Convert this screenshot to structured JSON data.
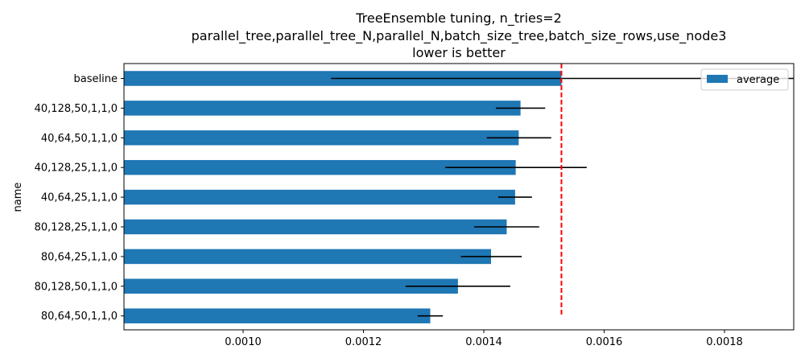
{
  "chart_data": {
    "type": "bar",
    "orientation": "horizontal",
    "title_lines": [
      "TreeEnsemble tuning, n_tries=2",
      "parallel_tree,parallel_tree_N,parallel_N,batch_size_tree,batch_size_rows,use_node3",
      "lower is better"
    ],
    "ylabel": "name",
    "xlabel": "",
    "xlim": [
      0.000802,
      0.001915
    ],
    "xticks": [
      0.001,
      0.0012,
      0.0014,
      0.0016,
      0.0018
    ],
    "xtick_labels": [
      "0.0010",
      "0.0012",
      "0.0014",
      "0.0016",
      "0.0018"
    ],
    "categories": [
      "baseline",
      "40,128,50,1,1,0",
      "40,64,50,1,1,0",
      "40,128,25,1,1,0",
      "40,64,25,1,1,0",
      "80,128,25,1,1,0",
      "80,64,25,1,1,0",
      "80,128,50,1,1,0",
      "80,64,50,1,1,0"
    ],
    "series": [
      {
        "name": "average",
        "color": "#1f77b4",
        "values": [
          0.001529,
          0.001461,
          0.001458,
          0.001453,
          0.001452,
          0.001438,
          0.001412,
          0.001357,
          0.001311
        ],
        "error_low": [
          0.001146,
          0.00142,
          0.001405,
          0.001336,
          0.001424,
          0.001384,
          0.001362,
          0.00127,
          0.00129
        ],
        "error_high": [
          0.001916,
          0.001502,
          0.001512,
          0.001571,
          0.00148,
          0.001492,
          0.001463,
          0.001444,
          0.001332
        ]
      }
    ],
    "reference_line": {
      "x": 0.001529,
      "color": "#ff0000",
      "style": "dashed"
    },
    "legend": {
      "position": "top-right",
      "entries": [
        "average"
      ]
    },
    "grid": false,
    "errorbar_color": "#000000"
  }
}
